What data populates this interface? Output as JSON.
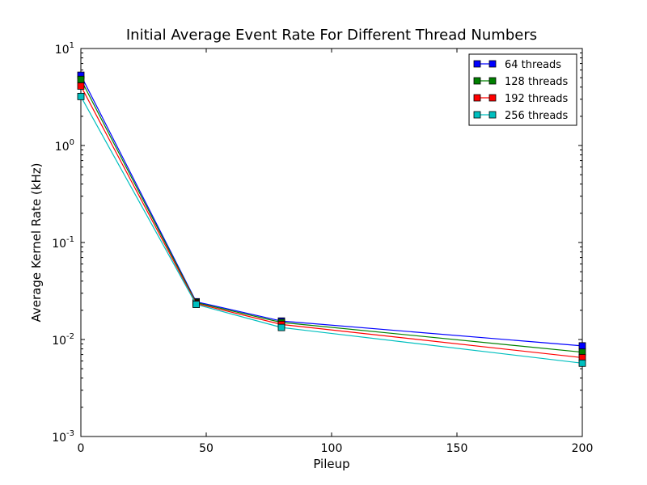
{
  "chart_data": {
    "type": "line",
    "title": "Initial Average Event Rate For Different Thread Numbers",
    "xlabel": "Pileup",
    "ylabel": "Average Kernel Rate (kHz)",
    "xlim": [
      0,
      200
    ],
    "ylim": [
      0.001,
      10
    ],
    "yscale": "log",
    "grid": false,
    "legend_position": "top-right",
    "x_ticks": [
      0,
      50,
      100,
      150,
      200
    ],
    "y_ticks": [
      {
        "value": 0.001,
        "base": "10",
        "exp": "-3"
      },
      {
        "value": 0.01,
        "base": "10",
        "exp": "-2"
      },
      {
        "value": 0.1,
        "base": "10",
        "exp": "-1"
      },
      {
        "value": 1,
        "base": "10",
        "exp": "0"
      },
      {
        "value": 10,
        "base": "10",
        "exp": "1"
      }
    ],
    "x": [
      0,
      46,
      80,
      200
    ],
    "series": [
      {
        "name": "64 threads",
        "color": "#0000ff",
        "values": [
          5.3,
          0.0245,
          0.0155,
          0.0086
        ]
      },
      {
        "name": "128 threads",
        "color": "#008000",
        "values": [
          4.8,
          0.024,
          0.015,
          0.0074
        ]
      },
      {
        "name": "192 threads",
        "color": "#ff0000",
        "values": [
          4.1,
          0.0235,
          0.0143,
          0.0065
        ]
      },
      {
        "name": "256 threads",
        "color": "#00bfbf",
        "values": [
          3.2,
          0.023,
          0.0133,
          0.0057
        ]
      }
    ]
  }
}
